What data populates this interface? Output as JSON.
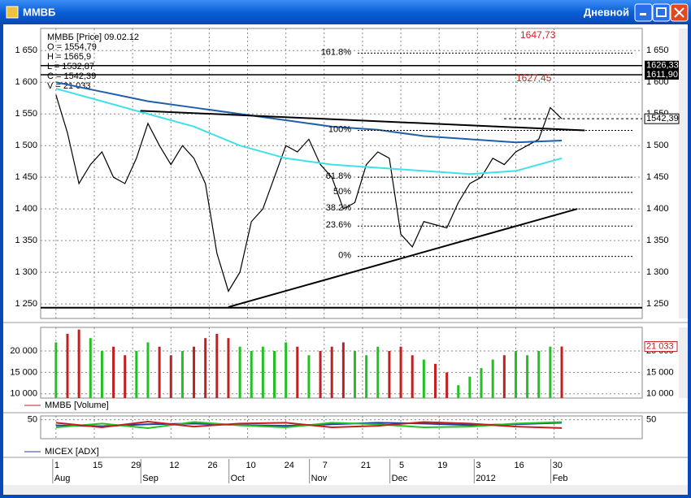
{
  "window": {
    "title": "ММВБ",
    "timeframe": "Дневной"
  },
  "chart_data": [
    {
      "type": "line",
      "legend_label": "ММВБ [Price] 09.02.12",
      "info": [
        "O = 1554,79",
        "H = 1565,9",
        "L = 1532,87",
        "C = 1542,39",
        "V = 21 033"
      ],
      "annotations": [
        "1647,73",
        "1627,45"
      ],
      "xlim": [
        -4,
        153
      ],
      "ylim": [
        1227,
        1685
      ],
      "yticks": [
        {
          "value": 1250,
          "label": "1 250"
        },
        {
          "value": 1300,
          "label": "1 300"
        },
        {
          "value": 1350,
          "label": "1 350"
        },
        {
          "value": 1400,
          "label": "1 400"
        },
        {
          "value": 1450,
          "label": "1 450"
        },
        {
          "value": 1500,
          "label": "1 500"
        },
        {
          "value": 1550,
          "label": "1 550"
        },
        {
          "value": 1600,
          "label": "1 600"
        },
        {
          "value": 1650,
          "label": "1 650"
        }
      ],
      "series": [
        {
          "color": "#000000",
          "x": [
            0,
            3,
            6,
            9,
            12,
            15,
            18,
            21,
            24,
            27,
            30,
            33,
            36,
            39,
            42,
            45,
            48,
            51,
            54,
            57,
            60,
            63,
            66,
            69,
            72,
            75,
            78,
            81,
            84,
            87,
            90,
            93,
            96,
            99,
            102,
            105,
            108,
            111,
            114,
            117,
            120,
            123,
            126,
            129,
            132
          ],
          "values": [
            1580,
            1520,
            1440,
            1470,
            1490,
            1450,
            1440,
            1480,
            1535,
            1500,
            1470,
            1500,
            1480,
            1440,
            1330,
            1270,
            1300,
            1380,
            1400,
            1450,
            1500,
            1490,
            1510,
            1470,
            1450,
            1400,
            1410,
            1470,
            1490,
            1480,
            1360,
            1340,
            1380,
            1375,
            1370,
            1410,
            1440,
            1450,
            1480,
            1470,
            1490,
            1500,
            1510,
            1560,
            1542.39
          ]
        },
        {
          "color": "#1f5fa8",
          "x": [
            0,
            12,
            24,
            36,
            48,
            60,
            72,
            84,
            96,
            108,
            120,
            132
          ],
          "values": [
            1600,
            1585,
            1570,
            1560,
            1550,
            1540,
            1530,
            1525,
            1515,
            1510,
            1505,
            1508
          ]
        },
        {
          "color": "#3fe0e8",
          "x": [
            0,
            12,
            24,
            36,
            48,
            60,
            72,
            84,
            96,
            108,
            120,
            132
          ],
          "values": [
            1590,
            1570,
            1550,
            1530,
            1500,
            1480,
            1470,
            1465,
            1460,
            1455,
            1460,
            1480
          ]
        }
      ],
      "trendlines": [
        {
          "x": [
            45,
            136
          ],
          "y": [
            1245,
            1400
          ]
        },
        {
          "x": [
            22,
            138
          ],
          "y": [
            1555,
            1524
          ]
        }
      ],
      "levels": [
        {
          "value": 1626.33,
          "label": "1626,33"
        },
        {
          "value": 1611.9,
          "label": "1611,90"
        }
      ],
      "hlines": [
        1244
      ],
      "last_price": {
        "value": 1542.39,
        "label": "1542,39"
      },
      "fib": [
        {
          "value": 1646,
          "label": "161.8%"
        },
        {
          "value": 1524,
          "label": "100%"
        },
        {
          "value": 1450,
          "label": "61.8%"
        },
        {
          "value": 1426,
          "label": "50%"
        },
        {
          "value": 1400,
          "label": "38.2%"
        },
        {
          "value": 1373,
          "label": "23.6%"
        },
        {
          "value": 1325,
          "label": "0%"
        }
      ]
    },
    {
      "type": "bar",
      "legend_label": "ММВБ [Volume]",
      "up_color": "#22c022",
      "down_color": "#c02020",
      "xlim": [
        -4,
        153
      ],
      "ylim": [
        9000,
        25500
      ],
      "yticks": [
        {
          "value": 10000,
          "label": "10 000"
        },
        {
          "value": 15000,
          "label": "15 000"
        },
        {
          "value": 20000,
          "label": "20 000"
        }
      ],
      "x": [
        0,
        3,
        6,
        9,
        12,
        15,
        18,
        21,
        24,
        27,
        30,
        33,
        36,
        39,
        42,
        45,
        48,
        51,
        54,
        57,
        60,
        63,
        66,
        69,
        72,
        75,
        78,
        81,
        84,
        87,
        90,
        93,
        96,
        99,
        102,
        105,
        108,
        111,
        114,
        117,
        120,
        123,
        126,
        129,
        132
      ],
      "values": [
        22000,
        24000,
        25000,
        23000,
        20000,
        21000,
        19000,
        20000,
        22000,
        21000,
        19000,
        20000,
        21000,
        23000,
        24000,
        23000,
        21000,
        20000,
        21000,
        20000,
        22000,
        21000,
        19000,
        20000,
        21000,
        22000,
        20000,
        19000,
        21000,
        20000,
        21000,
        19000,
        18000,
        17000,
        15000,
        12000,
        14000,
        16000,
        18000,
        19000,
        20000,
        19000,
        20000,
        21000,
        21033
      ],
      "last_value_label": "21 033"
    },
    {
      "type": "line",
      "legend_label": "MICEX [ADX]",
      "xlim": [
        -4,
        153
      ],
      "ylim": [
        0,
        60
      ],
      "yticks": [
        50
      ],
      "series": [
        {
          "color": "#1f3fa8",
          "x": [
            0,
            12,
            24,
            36,
            48,
            60,
            72,
            84,
            96,
            108,
            120,
            132
          ],
          "values": [
            35,
            33,
            38,
            40,
            36,
            34,
            38,
            42,
            40,
            36,
            38,
            42
          ]
        },
        {
          "color": "#22c022",
          "x": [
            0,
            12,
            24,
            36,
            48,
            60,
            72,
            84,
            96,
            108,
            120,
            132
          ],
          "values": [
            30,
            40,
            28,
            44,
            35,
            30,
            42,
            38,
            30,
            32,
            40,
            44
          ]
        },
        {
          "color": "#c02020",
          "x": [
            0,
            12,
            24,
            36,
            48,
            60,
            72,
            84,
            96,
            108,
            120,
            132
          ],
          "values": [
            42,
            30,
            45,
            32,
            40,
            42,
            30,
            34,
            44,
            40,
            32,
            28
          ]
        }
      ],
      "xticks": [
        {
          "value": 0,
          "label": "1"
        },
        {
          "value": 10,
          "label": "15"
        },
        {
          "value": 20,
          "label": "29"
        },
        {
          "value": 30,
          "label": "12"
        },
        {
          "value": 40,
          "label": "26"
        },
        {
          "value": 50,
          "label": "10"
        },
        {
          "value": 60,
          "label": "24"
        },
        {
          "value": 70,
          "label": "7"
        },
        {
          "value": 80,
          "label": "21"
        },
        {
          "value": 90,
          "label": "5"
        },
        {
          "value": 100,
          "label": "19"
        },
        {
          "value": 110,
          "label": "3"
        },
        {
          "value": 120,
          "label": "16"
        },
        {
          "value": 130,
          "label": "30"
        }
      ],
      "month_ticks": [
        {
          "value": 0,
          "label": "Aug"
        },
        {
          "value": 23,
          "label": "Sep"
        },
        {
          "value": 46,
          "label": "Oct"
        },
        {
          "value": 67,
          "label": "Nov"
        },
        {
          "value": 88,
          "label": "Dec"
        },
        {
          "value": 110,
          "label": "2012"
        },
        {
          "value": 130,
          "label": "Feb"
        }
      ]
    }
  ]
}
